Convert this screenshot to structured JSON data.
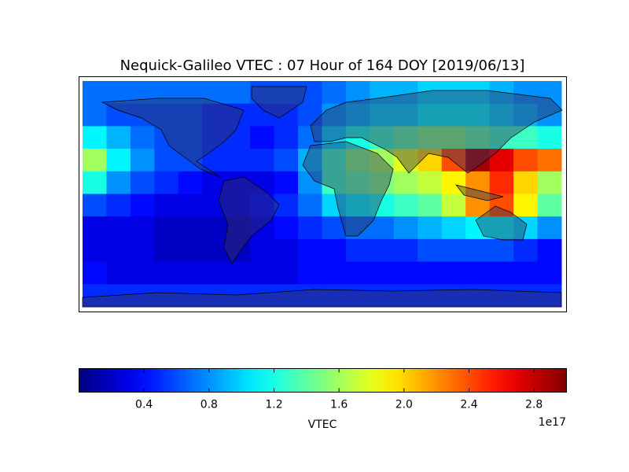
{
  "chart_data": {
    "type": "heatmap",
    "title": "Nequick-Galileo VTEC : 07 Hour of 164 DOY [2019/06/13]",
    "colormap": "jet",
    "values": [
      [
        0.7,
        0.7,
        0.7,
        0.7,
        0.7,
        0.7,
        0.7,
        0.6,
        0.6,
        0.6,
        0.7,
        0.8,
        0.9,
        0.9,
        1.0,
        1.0,
        1.0,
        0.9,
        0.8,
        0.8
      ],
      [
        0.7,
        0.6,
        0.6,
        0.6,
        0.6,
        0.5,
        0.5,
        0.5,
        0.5,
        0.6,
        0.8,
        0.9,
        1.0,
        1.0,
        1.1,
        1.1,
        1.1,
        1.0,
        0.9,
        0.8
      ],
      [
        1.1,
        0.9,
        0.7,
        0.6,
        0.6,
        0.5,
        0.5,
        0.4,
        0.5,
        0.7,
        1.0,
        1.2,
        1.3,
        1.4,
        1.5,
        1.5,
        1.4,
        1.3,
        1.3,
        1.2
      ],
      [
        1.6,
        1.1,
        0.8,
        0.6,
        0.6,
        0.5,
        0.5,
        0.5,
        0.6,
        0.9,
        1.3,
        1.5,
        1.6,
        1.8,
        2.0,
        2.4,
        2.9,
        2.7,
        2.4,
        2.3
      ],
      [
        1.2,
        0.8,
        0.6,
        0.5,
        0.4,
        0.3,
        0.3,
        0.3,
        0.4,
        0.8,
        1.3,
        1.4,
        1.5,
        1.6,
        1.7,
        1.9,
        2.2,
        2.5,
        2.0,
        1.6
      ],
      [
        0.6,
        0.5,
        0.4,
        0.3,
        0.3,
        0.3,
        0.3,
        0.4,
        0.5,
        0.7,
        1.0,
        1.1,
        1.2,
        1.3,
        1.4,
        1.7,
        2.2,
        2.4,
        1.9,
        1.4
      ],
      [
        0.3,
        0.3,
        0.3,
        0.2,
        0.2,
        0.2,
        0.2,
        0.3,
        0.4,
        0.5,
        0.6,
        0.7,
        0.7,
        0.8,
        0.9,
        1.0,
        1.1,
        1.1,
        1.0,
        0.8
      ],
      [
        0.3,
        0.3,
        0.3,
        0.2,
        0.2,
        0.2,
        0.2,
        0.3,
        0.3,
        0.4,
        0.4,
        0.5,
        0.5,
        0.5,
        0.6,
        0.6,
        0.6,
        0.6,
        0.5,
        0.4
      ],
      [
        0.4,
        0.3,
        0.3,
        0.3,
        0.3,
        0.3,
        0.3,
        0.3,
        0.3,
        0.4,
        0.4,
        0.4,
        0.4,
        0.4,
        0.4,
        0.4,
        0.4,
        0.4,
        0.4,
        0.4
      ],
      [
        0.5,
        0.5,
        0.5,
        0.5,
        0.5,
        0.5,
        0.5,
        0.5,
        0.5,
        0.5,
        0.5,
        0.5,
        0.5,
        0.5,
        0.5,
        0.5,
        0.5,
        0.5,
        0.5,
        0.5
      ]
    ],
    "colorbar_label": "VTEC",
    "colorbar_offset": "1e17",
    "clim": [
      0,
      3.0
    ],
    "cticks": [
      0.4,
      0.8,
      1.2,
      1.6,
      {
        "value": 2,
        "label": "2.0"
      },
      2.4,
      2.8
    ]
  }
}
